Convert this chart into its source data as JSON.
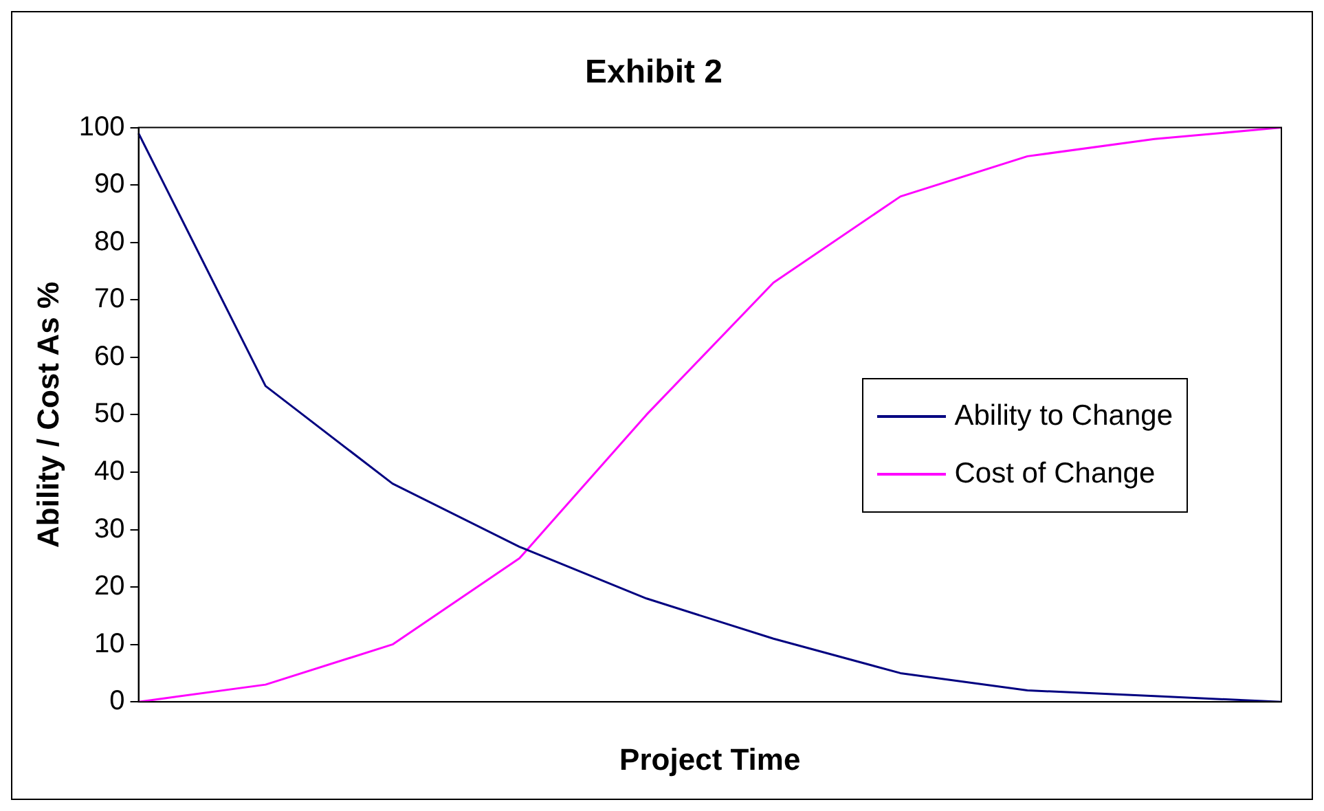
{
  "chart_data": {
    "type": "line",
    "title": "Exhibit 2",
    "xlabel": "Project Time",
    "ylabel": "Ability / Cost As %",
    "categories": [
      null,
      null,
      null,
      null,
      null,
      null,
      null,
      null,
      null,
      null
    ],
    "series": [
      {
        "name": "Ability to Change",
        "color": "#000080",
        "values": [
          99,
          55,
          38,
          27,
          18,
          11,
          5,
          2,
          1,
          0
        ]
      },
      {
        "name": "Cost of Change",
        "color": "#ff00ff",
        "values": [
          0,
          3,
          10,
          25,
          50,
          73,
          88,
          95,
          98,
          100
        ]
      }
    ],
    "ylim": [
      0,
      100
    ],
    "yticks": [
      0,
      10,
      20,
      30,
      40,
      50,
      60,
      70,
      80,
      90,
      100
    ],
    "grid": false,
    "legend": "right",
    "marker": "none",
    "line_style": "solid",
    "tick_labels": "y"
  }
}
